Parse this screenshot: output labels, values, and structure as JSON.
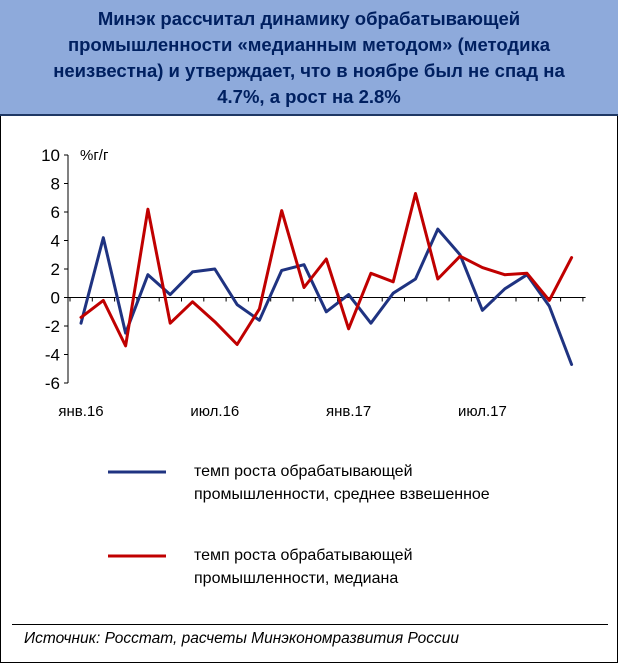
{
  "header": {
    "title": "Минэк рассчитал динамику обрабатывающей промышленности «медианным методом» (методика неизвестна) и утверждает, что в ноябре был не спад на 4.7%, а рост на 2.8%"
  },
  "chart_data": {
    "type": "line",
    "ylabel": "%г/г",
    "ylim": [
      -6,
      10
    ],
    "yticks": [
      "10",
      "8",
      "6",
      "4",
      "2",
      "0",
      "-2",
      "-4",
      "-6"
    ],
    "xtick_labels": [
      {
        "label": "янв.16",
        "index": 0
      },
      {
        "label": "июл.16",
        "index": 6
      },
      {
        "label": "янв.17",
        "index": 12
      },
      {
        "label": "июл.17",
        "index": 18
      }
    ],
    "x_count": 23,
    "series": [
      {
        "name": "темп роста обрабатывающей промышленности, среднее взвешенное",
        "color": "#1f3381",
        "values": [
          -1.8,
          4.2,
          -2.5,
          1.6,
          0.2,
          1.8,
          2.0,
          -0.5,
          -1.6,
          1.9,
          2.3,
          -1.0,
          0.2,
          -1.8,
          0.3,
          1.3,
          4.8,
          3.0,
          -0.9,
          0.6,
          1.6,
          -0.6,
          -4.7
        ]
      },
      {
        "name": "темп роста обрабатывающей промышленности, медиана",
        "color": "#c00000",
        "values": [
          -1.4,
          -0.2,
          -3.4,
          6.2,
          -1.8,
          -0.3,
          -1.7,
          -3.3,
          -0.8,
          6.1,
          0.7,
          2.7,
          -2.2,
          1.7,
          1.1,
          7.3,
          1.3,
          2.9,
          2.1,
          1.6,
          1.7,
          -0.2,
          2.8
        ]
      }
    ]
  },
  "legend": {
    "blue": {
      "line1": "темп роста обрабатывающей",
      "line2": "промышленности, среднее взвешенное"
    },
    "red": {
      "line1": "темп роста обрабатывающей",
      "line2": "промышленности, медиана"
    }
  },
  "source": "Источник: Росстат, расчеты Минэкономразвития России"
}
